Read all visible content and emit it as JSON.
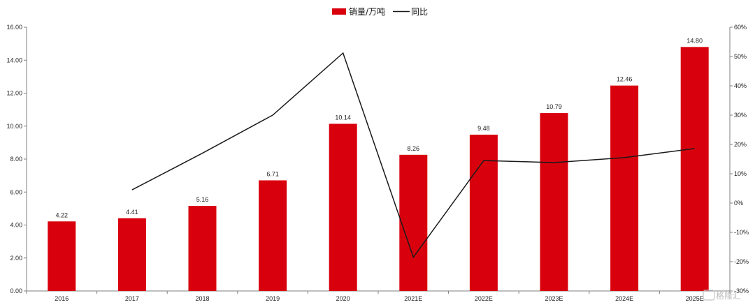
{
  "chart_data": {
    "type": "bar",
    "categories": [
      "2016",
      "2017",
      "2018",
      "2019",
      "2020",
      "2021E",
      "2022E",
      "2023E",
      "2024E",
      "2025E"
    ],
    "series": [
      {
        "name": "销量/万吨",
        "type": "bar",
        "axis": "left",
        "values": [
          4.22,
          4.41,
          5.16,
          6.71,
          10.14,
          8.26,
          9.48,
          10.79,
          12.46,
          14.8
        ],
        "labels": [
          "4.22",
          "4.41",
          "5.16",
          "6.71",
          "10.14",
          "8.26",
          "9.48",
          "10.79",
          "12.46",
          "14.80"
        ]
      },
      {
        "name": "同比",
        "type": "line",
        "axis": "right",
        "values": [
          null,
          4.5,
          17.0,
          30.0,
          51.2,
          -18.5,
          14.5,
          13.8,
          15.5,
          18.6
        ]
      }
    ],
    "y_left": {
      "range": [
        0,
        16
      ],
      "ticks": [
        "0.00",
        "2.00",
        "4.00",
        "6.00",
        "8.00",
        "10.00",
        "12.00",
        "14.00",
        "16.00"
      ]
    },
    "y_right": {
      "range": [
        -30,
        60
      ],
      "ticks": [
        "-30%",
        "-20%",
        "-10%",
        "0%",
        "10%",
        "20%",
        "30%",
        "40%",
        "50%",
        "60%"
      ]
    },
    "legend_position": "top-center",
    "grid": false,
    "colors": {
      "bar": "#d9000d",
      "line": "#1a1a1a"
    }
  },
  "watermark": {
    "text": "格隆汇"
  }
}
